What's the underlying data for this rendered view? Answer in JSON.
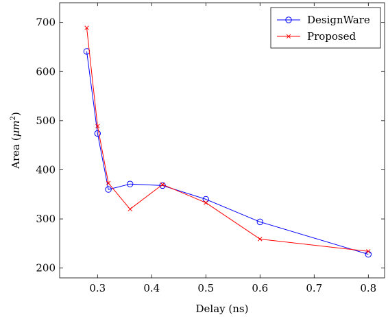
{
  "chart_data": {
    "type": "line",
    "xlabel": "Delay (ns)",
    "ylabel_prefix": "Area (",
    "ylabel_unit_base": "μm",
    "ylabel_unit_exp": "2",
    "ylabel_suffix": ")",
    "xlim": [
      0.23,
      0.83
    ],
    "ylim": [
      180,
      740
    ],
    "xticks": [
      0.3,
      0.4,
      0.5,
      0.6,
      0.7,
      0.8
    ],
    "xtick_labels": [
      "0.3",
      "0.4",
      "0.5",
      "0.6",
      "0.7",
      "0.8"
    ],
    "yticks": [
      200,
      300,
      400,
      500,
      600,
      700
    ],
    "ytick_labels": [
      "200",
      "300",
      "400",
      "500",
      "600",
      "700"
    ],
    "grid": false,
    "legend_position": "top-right",
    "series": [
      {
        "name": "DesignWare",
        "color": "#0000ff",
        "marker": "circle",
        "x": [
          0.28,
          0.3,
          0.32,
          0.36,
          0.42,
          0.5,
          0.6,
          0.8
        ],
        "y": [
          641,
          474,
          360,
          371,
          368,
          340,
          294,
          228
        ]
      },
      {
        "name": "Proposed",
        "color": "#ff0000",
        "marker": "cross",
        "x": [
          0.28,
          0.3,
          0.32,
          0.36,
          0.42,
          0.5,
          0.6,
          0.8
        ],
        "y": [
          689,
          489,
          373,
          320,
          370,
          333,
          259,
          234
        ]
      }
    ]
  }
}
